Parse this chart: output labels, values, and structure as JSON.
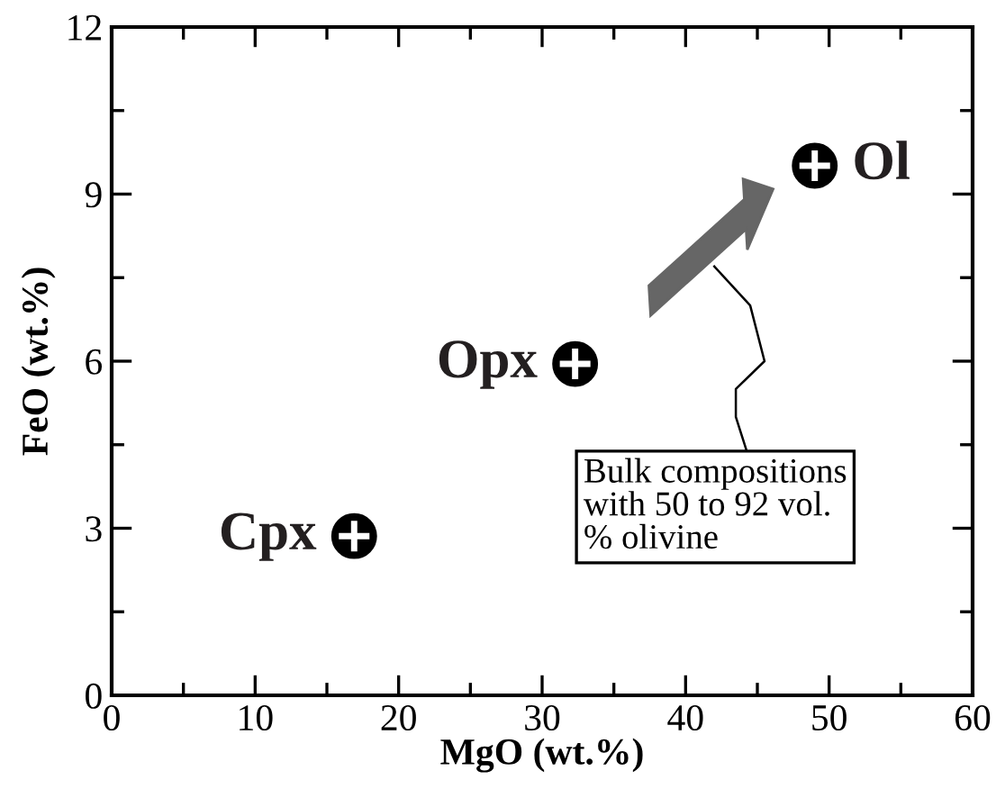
{
  "chart_data": {
    "type": "scatter",
    "xlabel": "MgO (wt.%)",
    "ylabel": "FeO (wt.%)",
    "xlim": [
      0,
      60
    ],
    "ylim": [
      0,
      12
    ],
    "xticks": [
      0,
      10,
      20,
      30,
      40,
      50,
      60
    ],
    "yticks": [
      0,
      3,
      6,
      9,
      12
    ],
    "grid": false,
    "legend": false,
    "marker": "circle",
    "series": [
      {
        "color": "#000000",
        "x": [
          16.9,
          32.3,
          49.0
        ],
        "values": [
          2.86,
          5.95,
          9.51
        ]
      }
    ],
    "annotations": [
      {
        "text": "Cpx",
        "x": 16.9,
        "y": 2.86
      },
      {
        "text": "Opx",
        "x": 32.3,
        "y": 5.95
      },
      {
        "text": "Ol",
        "x": 49.0,
        "y": 9.51
      },
      "Bulk compositions\nwith 50 to 92 vol.\n% olivine"
    ]
  }
}
